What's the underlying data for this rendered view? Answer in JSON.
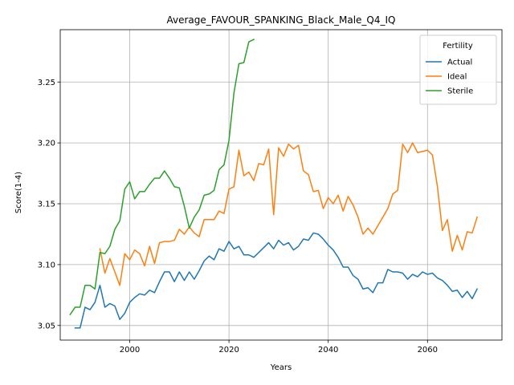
{
  "chart_data": {
    "type": "line",
    "title": "Average_FAVOUR_SPANKING_Black_Male_Q4_IQ",
    "xlabel": "Years",
    "ylabel": "Score(1-4)",
    "xlim": [
      1986,
      2075
    ],
    "ylim": [
      3.038,
      3.293
    ],
    "xticks": [
      2000,
      2020,
      2040,
      2060
    ],
    "yticks": [
      3.05,
      3.1,
      3.15,
      3.2,
      3.25
    ],
    "grid": true,
    "legend": {
      "title": "Fertility",
      "position": "top-right"
    },
    "series": [
      {
        "name": "Actual",
        "color": "#1f77b4",
        "x": [
          1989,
          1990,
          1991,
          1992,
          1993,
          1994,
          1995,
          1996,
          1997,
          1998,
          1999,
          2000,
          2001,
          2002,
          2003,
          2004,
          2005,
          2006,
          2007,
          2008,
          2009,
          2010,
          2011,
          2012,
          2013,
          2014,
          2015,
          2016,
          2017,
          2018,
          2019,
          2020,
          2021,
          2022,
          2023,
          2024,
          2025,
          2026,
          2027,
          2028,
          2029,
          2030,
          2031,
          2032,
          2033,
          2034,
          2035,
          2036,
          2037,
          2038,
          2039,
          2040,
          2041,
          2042,
          2043,
          2044,
          2045,
          2046,
          2047,
          2048,
          2049,
          2050,
          2051,
          2052,
          2053,
          2054,
          2055,
          2056,
          2057,
          2058,
          2059,
          2060,
          2061,
          2062,
          2063,
          2064,
          2065,
          2066,
          2067,
          2068,
          2069,
          2070
        ],
        "values": [
          3.048,
          3.048,
          3.065,
          3.063,
          3.069,
          3.083,
          3.065,
          3.068,
          3.066,
          3.055,
          3.06,
          3.069,
          3.073,
          3.076,
          3.075,
          3.079,
          3.077,
          3.086,
          3.094,
          3.094,
          3.086,
          3.094,
          3.087,
          3.094,
          3.088,
          3.095,
          3.103,
          3.107,
          3.104,
          3.113,
          3.111,
          3.119,
          3.113,
          3.115,
          3.108,
          3.108,
          3.106,
          3.11,
          3.114,
          3.118,
          3.113,
          3.12,
          3.116,
          3.118,
          3.112,
          3.115,
          3.121,
          3.12,
          3.126,
          3.125,
          3.121,
          3.116,
          3.112,
          3.106,
          3.098,
          3.098,
          3.091,
          3.088,
          3.08,
          3.081,
          3.077,
          3.085,
          3.085,
          3.096,
          3.094,
          3.094,
          3.093,
          3.088,
          3.092,
          3.09,
          3.094,
          3.092,
          3.093,
          3.089,
          3.087,
          3.083,
          3.078,
          3.079,
          3.073,
          3.078,
          3.072,
          3.08
        ]
      },
      {
        "name": "Ideal",
        "color": "#ff7f0e",
        "x": [
          1994,
          1995,
          1996,
          1997,
          1998,
          1999,
          2000,
          2001,
          2002,
          2003,
          2004,
          2005,
          2006,
          2007,
          2008,
          2009,
          2010,
          2011,
          2012,
          2013,
          2014,
          2015,
          2016,
          2017,
          2018,
          2019,
          2020,
          2021,
          2022,
          2023,
          2024,
          2025,
          2026,
          2027,
          2028,
          2029,
          2030,
          2031,
          2032,
          2033,
          2034,
          2035,
          2036,
          2037,
          2038,
          2039,
          2040,
          2041,
          2042,
          2043,
          2044,
          2045,
          2046,
          2047,
          2048,
          2049,
          2050,
          2051,
          2052,
          2053,
          2054,
          2055,
          2056,
          2057,
          2058,
          2059,
          2060,
          2061,
          2062,
          2063,
          2064,
          2065,
          2066,
          2067,
          2068,
          2069,
          2070
        ],
        "values": [
          3.113,
          3.093,
          3.105,
          3.094,
          3.083,
          3.109,
          3.104,
          3.112,
          3.109,
          3.099,
          3.115,
          3.101,
          3.118,
          3.119,
          3.119,
          3.12,
          3.129,
          3.125,
          3.131,
          3.126,
          3.123,
          3.137,
          3.137,
          3.137,
          3.144,
          3.142,
          3.162,
          3.164,
          3.194,
          3.173,
          3.176,
          3.169,
          3.183,
          3.182,
          3.195,
          3.141,
          3.196,
          3.189,
          3.199,
          3.195,
          3.198,
          3.177,
          3.174,
          3.16,
          3.161,
          3.146,
          3.155,
          3.15,
          3.157,
          3.144,
          3.156,
          3.149,
          3.139,
          3.125,
          3.13,
          3.125,
          3.132,
          3.139,
          3.146,
          3.158,
          3.161,
          3.199,
          3.192,
          3.2,
          3.192,
          3.193,
          3.194,
          3.19,
          3.164,
          3.128,
          3.137,
          3.111,
          3.124,
          3.112,
          3.127,
          3.126,
          3.139
        ]
      },
      {
        "name": "Sterile",
        "color": "#2ca02c",
        "x": [
          1988,
          1989,
          1990,
          1991,
          1992,
          1993,
          1994,
          1995,
          1996,
          1997,
          1998,
          1999,
          2000,
          2001,
          2002,
          2003,
          2004,
          2005,
          2006,
          2007,
          2008,
          2009,
          2010,
          2011,
          2012,
          2013,
          2014,
          2015,
          2016,
          2017,
          2018,
          2019,
          2020,
          2021,
          2022,
          2023,
          2024,
          2025
        ],
        "values": [
          3.059,
          3.065,
          3.065,
          3.083,
          3.083,
          3.08,
          3.11,
          3.109,
          3.115,
          3.129,
          3.136,
          3.162,
          3.168,
          3.154,
          3.16,
          3.16,
          3.166,
          3.171,
          3.171,
          3.177,
          3.171,
          3.164,
          3.163,
          3.148,
          3.13,
          3.139,
          3.145,
          3.157,
          3.158,
          3.161,
          3.178,
          3.182,
          3.202,
          3.241,
          3.265,
          3.266,
          3.283,
          3.285
        ]
      }
    ]
  }
}
